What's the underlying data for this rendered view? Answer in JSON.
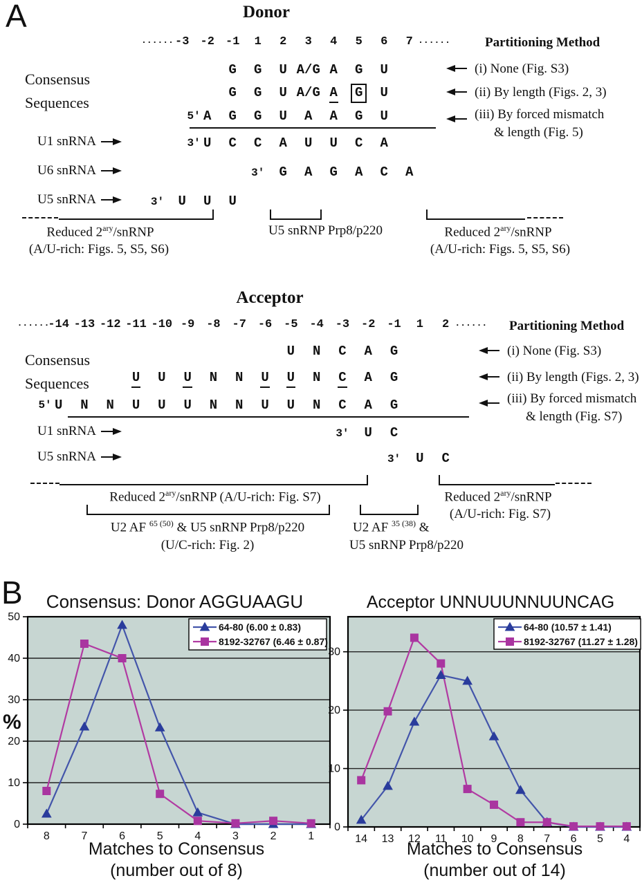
{
  "panelA": {
    "label": "A",
    "donor": {
      "title": "Donor",
      "partitioning_header": "Partitioning Method",
      "positions": [
        "......",
        "-3",
        "-2",
        "-1",
        "1",
        "2",
        "3",
        "4",
        "5",
        "6",
        "7",
        "......"
      ],
      "consensus_label_line1": "Consensus",
      "consensus_label_line2": "Sequences",
      "consensus_rows": [
        {
          "cells": [
            {
              "c": 3,
              "t": "G"
            },
            {
              "c": 4,
              "t": "G"
            },
            {
              "c": 5,
              "t": "U"
            },
            {
              "c": 6,
              "t": "A/G"
            },
            {
              "c": 7,
              "t": "A"
            },
            {
              "c": 8,
              "t": "G"
            },
            {
              "c": 9,
              "t": "U"
            }
          ],
          "annotation_lines": [
            "(i) None (Fig. S3)"
          ]
        },
        {
          "cells": [
            {
              "c": 3,
              "t": "G"
            },
            {
              "c": 4,
              "t": "G"
            },
            {
              "c": 5,
              "t": "U"
            },
            {
              "c": 6,
              "t": "A/G"
            },
            {
              "c": 7,
              "t": "A",
              "underline": true
            },
            {
              "c": 8,
              "t": "G",
              "box": true
            },
            {
              "c": 9,
              "t": "U"
            }
          ],
          "annotation_lines": [
            "(ii) By length (Figs. 2, 3)"
          ]
        },
        {
          "cells": [
            {
              "c": 2,
              "t": "A",
              "prefix": "5'"
            },
            {
              "c": 3,
              "t": "G"
            },
            {
              "c": 4,
              "t": "G"
            },
            {
              "c": 5,
              "t": "U"
            },
            {
              "c": 6,
              "t": "A"
            },
            {
              "c": 7,
              "t": "A"
            },
            {
              "c": 8,
              "t": "G"
            },
            {
              "c": 9,
              "t": "U"
            }
          ],
          "annotation_lines": [
            "(iii) By forced mismatch",
            "& length (Fig. 5)"
          ]
        }
      ],
      "snrna_rows": [
        {
          "label": "U1 snRNA",
          "cells": [
            {
              "c": 2,
              "t": "U",
              "prefix": "3'"
            },
            {
              "c": 3,
              "t": "C"
            },
            {
              "c": 4,
              "t": "C"
            },
            {
              "c": 5,
              "t": "A"
            },
            {
              "c": 6,
              "t": "U"
            },
            {
              "c": 7,
              "t": "U"
            },
            {
              "c": 8,
              "t": "C"
            },
            {
              "c": 9,
              "t": "A"
            }
          ]
        },
        {
          "label": "U6 snRNA",
          "cells": [
            {
              "c": 4,
              "prefix": "3'"
            },
            {
              "c": 5,
              "t": "G"
            },
            {
              "c": 6,
              "t": "A"
            },
            {
              "c": 7,
              "t": "G"
            },
            {
              "c": 8,
              "t": "A"
            },
            {
              "c": 9,
              "t": "C"
            },
            {
              "c": 10,
              "t": "A"
            }
          ]
        },
        {
          "label": "U5 snRNA",
          "cells": [
            {
              "c": 0,
              "prefix": "3'"
            },
            {
              "c": 1,
              "t": "U"
            },
            {
              "c": 2,
              "t": "U"
            },
            {
              "c": 3,
              "t": "U"
            }
          ]
        }
      ],
      "brackets": {
        "left_line1": {
          "pre": "Reduced 2",
          "sup": "ary",
          "post": "/snRNP"
        },
        "left_line2": "(A/U-rich: Figs. 5, S5, S6)",
        "mid": "U5 snRNP Prp8/p220",
        "right_line1": {
          "pre": "Reduced 2",
          "sup": "ary",
          "post": "/snRNP"
        },
        "right_line2": "(A/U-rich: Figs. 5, S5, S6)"
      }
    },
    "acceptor": {
      "title": "Acceptor",
      "partitioning_header": "Partitioning Method",
      "positions": [
        "......",
        "-14",
        "-13",
        "-12",
        "-11",
        "-10",
        "-9",
        "-8",
        "-7",
        "-6",
        "-5",
        "-4",
        "-3",
        "-2",
        "-1",
        "1",
        "2",
        "......"
      ],
      "consensus_label_line1": "Consensus",
      "consensus_label_line2": "Sequences",
      "consensus_rows": [
        {
          "cells": [
            {
              "c": 10,
              "t": "U"
            },
            {
              "c": 11,
              "t": "N"
            },
            {
              "c": 12,
              "t": "C"
            },
            {
              "c": 13,
              "t": "A"
            },
            {
              "c": 14,
              "t": "G"
            }
          ],
          "annotation_lines": [
            "(i) None (Fig. S3)"
          ]
        },
        {
          "cells": [
            {
              "c": 4,
              "t": "U",
              "underline": true
            },
            {
              "c": 5,
              "t": "U"
            },
            {
              "c": 6,
              "t": "U",
              "underline": true
            },
            {
              "c": 7,
              "t": "N"
            },
            {
              "c": 8,
              "t": "N"
            },
            {
              "c": 9,
              "t": "U",
              "underline": true
            },
            {
              "c": 10,
              "t": "U",
              "underline": true
            },
            {
              "c": 11,
              "t": "N"
            },
            {
              "c": 12,
              "t": "C",
              "underline": true
            },
            {
              "c": 13,
              "t": "A"
            },
            {
              "c": 14,
              "t": "G"
            }
          ],
          "annotation_lines": [
            "(ii) By length (Figs. 2, 3)"
          ]
        },
        {
          "cells": [
            {
              "c": 1,
              "t": "U",
              "prefix": "5'"
            },
            {
              "c": 2,
              "t": "N"
            },
            {
              "c": 3,
              "t": "N"
            },
            {
              "c": 4,
              "t": "U"
            },
            {
              "c": 5,
              "t": "U"
            },
            {
              "c": 6,
              "t": "U"
            },
            {
              "c": 7,
              "t": "N"
            },
            {
              "c": 8,
              "t": "N"
            },
            {
              "c": 9,
              "t": "U"
            },
            {
              "c": 10,
              "t": "U"
            },
            {
              "c": 11,
              "t": "N"
            },
            {
              "c": 12,
              "t": "C"
            },
            {
              "c": 13,
              "t": "A"
            },
            {
              "c": 14,
              "t": "G"
            }
          ],
          "annotation_lines": [
            "(iii) By forced mismatch",
            "& length (Fig. S7)"
          ]
        }
      ],
      "snrna_rows": [
        {
          "label": "U1 snRNA",
          "cells": [
            {
              "c": 12,
              "prefix": "3'"
            },
            {
              "c": 13,
              "t": "U"
            },
            {
              "c": 14,
              "t": "C"
            }
          ]
        },
        {
          "label": "U5 snRNA",
          "cells": [
            {
              "c": 14,
              "prefix": "3'"
            },
            {
              "c": 15,
              "t": "U"
            },
            {
              "c": 16,
              "t": "C"
            }
          ]
        }
      ],
      "brackets": {
        "row1": {
          "pre": "Reduced 2",
          "sup": "ary",
          "post": "/snRNP (A/U-rich: Fig. S7)"
        },
        "u2af65_line1": {
          "pre": "U2 AF ",
          "sup": "65 (50)",
          "post": " & U5 snRNP Prp8/p220"
        },
        "u2af65_line2": "(U/C-rich: Fig. 2)",
        "u2af35_line1": {
          "pre": "U2 AF ",
          "sup": "35 (38)",
          "post": " &"
        },
        "u2af35_line2": "U5 snRNP Prp8/p220",
        "right_line1": {
          "pre": "Reduced 2",
          "sup": "ary",
          "post": "/snRNP"
        },
        "right_line2": "(A/U-rich: Fig. S7)"
      }
    }
  },
  "panelB": {
    "label": "B",
    "ylabel_left": "%"
  },
  "chart_data": [
    {
      "type": "line",
      "title": "Consensus:  Donor  AGGUAAGU",
      "xlabel": "Matches to Consensus (number out of 8)",
      "xlabel_lines": [
        "Matches to Consensus",
        "(number out of 8)"
      ],
      "ylabel": "%",
      "categories": [
        "8",
        "7",
        "6",
        "5",
        "4",
        "3",
        "2",
        "1"
      ],
      "ylim": [
        0,
        50
      ],
      "yticks": [
        0,
        10,
        20,
        30,
        40,
        50
      ],
      "grid": true,
      "legend_position": "top-right",
      "plot_bg": "#c7d6d2",
      "series": [
        {
          "name": "64-80 (6.00 ± 0.83)",
          "marker": "triangle",
          "line_color": "#4355aa",
          "marker_color": "#2a3c9c",
          "values": [
            2.5,
            23.5,
            48,
            23.3,
            2.8,
            0,
            0,
            0
          ]
        },
        {
          "name": "8192-32767 (6.46 ± 0.87)",
          "marker": "square",
          "line_color": "#b13aa2",
          "marker_color": "#a935a0",
          "values": [
            8,
            43.5,
            40,
            7.3,
            0.8,
            0.2,
            0.8,
            0.2
          ]
        }
      ]
    },
    {
      "type": "line",
      "title": "Acceptor  UNNUUUNNUUNCAG",
      "xlabel": "Matches to Consensus (number out of 14)",
      "xlabel_lines": [
        "Matches to Consensus",
        "(number out of 14)"
      ],
      "ylabel": "",
      "categories": [
        "14",
        "13",
        "12",
        "11",
        "10",
        "9",
        "8",
        "7",
        "6",
        "5",
        "4"
      ],
      "ylim": [
        0,
        36
      ],
      "yticks": [
        0,
        10,
        20,
        30
      ],
      "grid": true,
      "legend_position": "top-right",
      "plot_bg": "#c7d6d2",
      "series": [
        {
          "name": "64-80 (10.57 ± 1.41)",
          "marker": "triangle",
          "line_color": "#4355aa",
          "marker_color": "#2a3c9c",
          "values": [
            1.2,
            7,
            18,
            26,
            25,
            15.5,
            6.3,
            0.8,
            0,
            0,
            0
          ]
        },
        {
          "name": "8192-32767 (11.27 ± 1.28)",
          "marker": "square",
          "line_color": "#b13aa2",
          "marker_color": "#a935a0",
          "values": [
            8,
            19.8,
            32.4,
            28,
            6.5,
            3.8,
            0.8,
            0.8,
            0.1,
            0.1,
            0.1
          ]
        }
      ]
    }
  ]
}
